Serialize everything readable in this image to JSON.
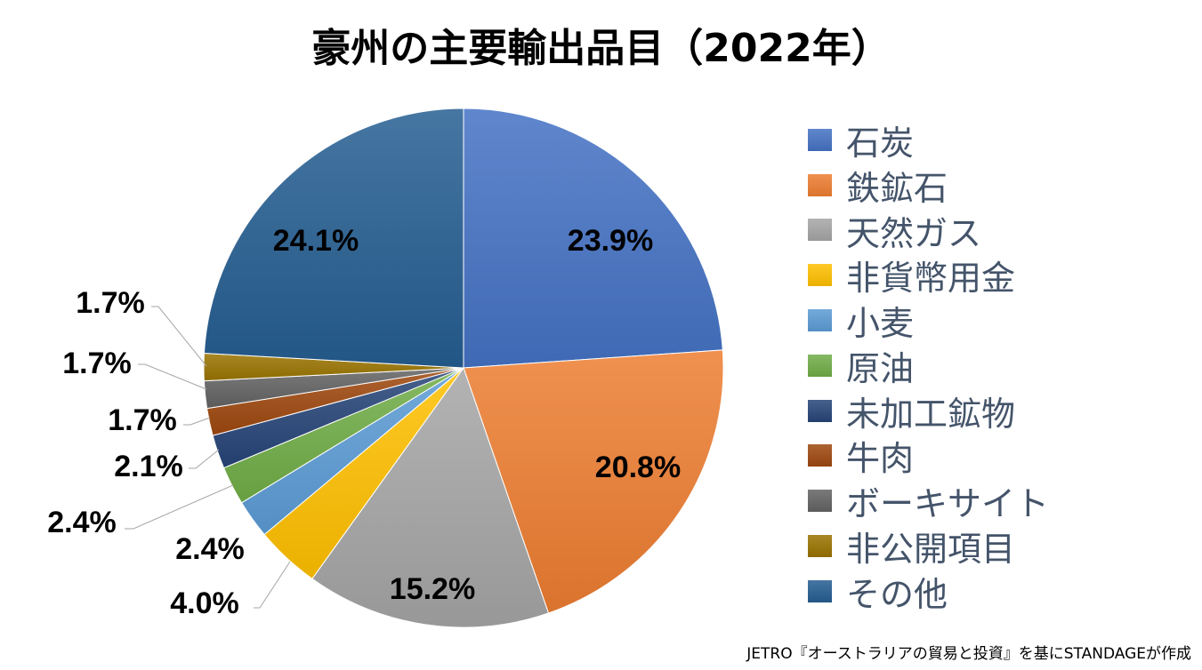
{
  "title": "豪州の主要輸出品目（2022年）",
  "source": "JETRO『オーストラリアの貿易と投資』を基にSTANDAGEが作成",
  "chart_data": {
    "type": "pie",
    "title": "豪州の主要輸出品目（2022年）",
    "start": "top",
    "direction": "clockwise",
    "legend_position": "right",
    "slices": [
      {
        "name": "石炭",
        "value": 23.9,
        "label": "23.9%",
        "color": "#4472c4"
      },
      {
        "name": "鉄鉱石",
        "value": 20.8,
        "label": "20.8%",
        "color": "#ed7d31"
      },
      {
        "name": "天然ガス",
        "value": 15.2,
        "label": "15.2%",
        "color": "#a5a5a5"
      },
      {
        "name": "非貨幣用金",
        "value": 4.0,
        "label": "4.0%",
        "color": "#ffc000"
      },
      {
        "name": "小麦",
        "value": 2.4,
        "label": "2.4%",
        "color": "#5b9bd5"
      },
      {
        "name": "原油",
        "value": 2.4,
        "label": "2.4%",
        "color": "#70ad47"
      },
      {
        "name": "未加工鉱物",
        "value": 2.1,
        "label": "2.1%",
        "color": "#264478"
      },
      {
        "name": "牛肉",
        "value": 1.7,
        "label": "1.7%",
        "color": "#9e480e"
      },
      {
        "name": "ボーキサイト",
        "value": 1.7,
        "label": "1.7%",
        "color": "#636363"
      },
      {
        "name": "非公開項目",
        "value": 1.7,
        "label": "1.7%",
        "color": "#997300"
      },
      {
        "name": "その他",
        "value": 24.1,
        "label": "24.1%",
        "color": "#255e91"
      }
    ]
  }
}
